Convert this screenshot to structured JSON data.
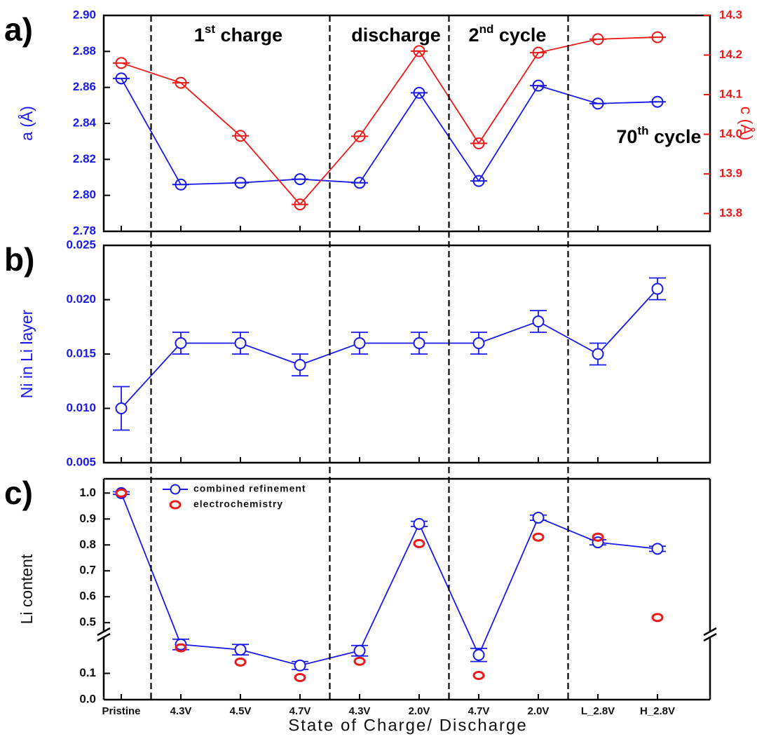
{
  "chart_data": [
    {
      "type": "line",
      "label": "a)",
      "categories": [
        null,
        null,
        null,
        null,
        null,
        null,
        null,
        null,
        null,
        null
      ],
      "y_label": "a (Å)",
      "y2_label": "c (Å)",
      "ylim": [
        2.78,
        2.9
      ],
      "yticks": [
        2.78,
        {
          "value": 2.8,
          "label": "2.80"
        },
        2.82,
        2.84,
        2.86,
        2.88,
        {
          "value": 2.9,
          "label": "2.90"
        }
      ],
      "y2lim": [
        13.755,
        14.3
      ],
      "y2ticks": [
        13.8,
        13.9,
        {
          "value": 14,
          "label": "14.0"
        },
        14.1,
        14.2,
        14.3
      ],
      "series": [
        {
          "color": "#1a1aee",
          "values": [
            2.865,
            2.806,
            2.807,
            2.809,
            2.807,
            2.857,
            2.808,
            2.861,
            2.851,
            2.852
          ]
        },
        {
          "color": "#ee1a1a",
          "axis": "y2",
          "values": [
            14.18,
            14.13,
            13.996,
            13.823,
            13.995,
            14.21,
            13.977,
            14.206,
            14.24,
            14.245
          ]
        }
      ],
      "annotations": [
        "1st charge",
        "discharge",
        "2nd cycle",
        "70th cycle"
      ]
    },
    {
      "type": "line",
      "label": "b)",
      "categories": [
        null,
        null,
        null,
        null,
        null,
        null,
        null,
        null,
        null,
        null
      ],
      "y_label": "Ni in Li layer",
      "ylim": [
        0.005,
        0.025
      ],
      "yticks": [
        0.005,
        {
          "value": 0.01,
          "label": "0.010"
        },
        0.015,
        {
          "value": 0.02,
          "label": "0.020"
        },
        0.025
      ],
      "series": [
        {
          "color": "#1a1aee",
          "values": [
            0.01,
            0.016,
            0.016,
            0.014,
            0.016,
            0.016,
            0.016,
            0.018,
            0.015,
            0.021
          ],
          "errors": [
            0.002,
            0.001,
            0.001,
            0.001,
            0.001,
            0.001,
            0.001,
            0.001,
            0.001,
            0.001
          ]
        }
      ]
    },
    {
      "type": "line",
      "label": "c)",
      "categories": [
        "Pristine",
        "4.3V",
        "4.5V",
        "4.7V",
        "4.3V",
        "2.0V",
        "4.7V",
        "2.0V",
        "L_2.8V",
        "H_2.8V"
      ],
      "x_label": "State of Charge/ Discharge",
      "y_label": "Li content",
      "ylim_lower": [
        0,
        0.24
      ],
      "ylim_upper": [
        0.46,
        1.055
      ],
      "yticks_lower": [
        {
          "value": 0,
          "label": "0.0"
        },
        0.1
      ],
      "yticks_upper": [
        0.5,
        0.6,
        0.7,
        0.8,
        0.9,
        {
          "value": 1,
          "label": "1.0"
        }
      ],
      "series": [
        {
          "name": "combined refinement",
          "color": "#1a1aee",
          "values": [
            1.0,
            0.21,
            0.19,
            0.13,
            0.186,
            0.881,
            0.17,
            0.905,
            0.81,
            0.785
          ],
          "errors": [
            0.005,
            0.02,
            0.02,
            0.015,
            0.02,
            0.01,
            0.025,
            0.01,
            0.01,
            0.01
          ]
        },
        {
          "name": "electrochemistry",
          "color": "#ee1a1a",
          "line": false,
          "values": [
            1.0,
            0.197,
            0.143,
            0.084,
            0.146,
            0.805,
            0.092,
            0.83,
            0.83,
            0.52
          ]
        }
      ]
    }
  ]
}
